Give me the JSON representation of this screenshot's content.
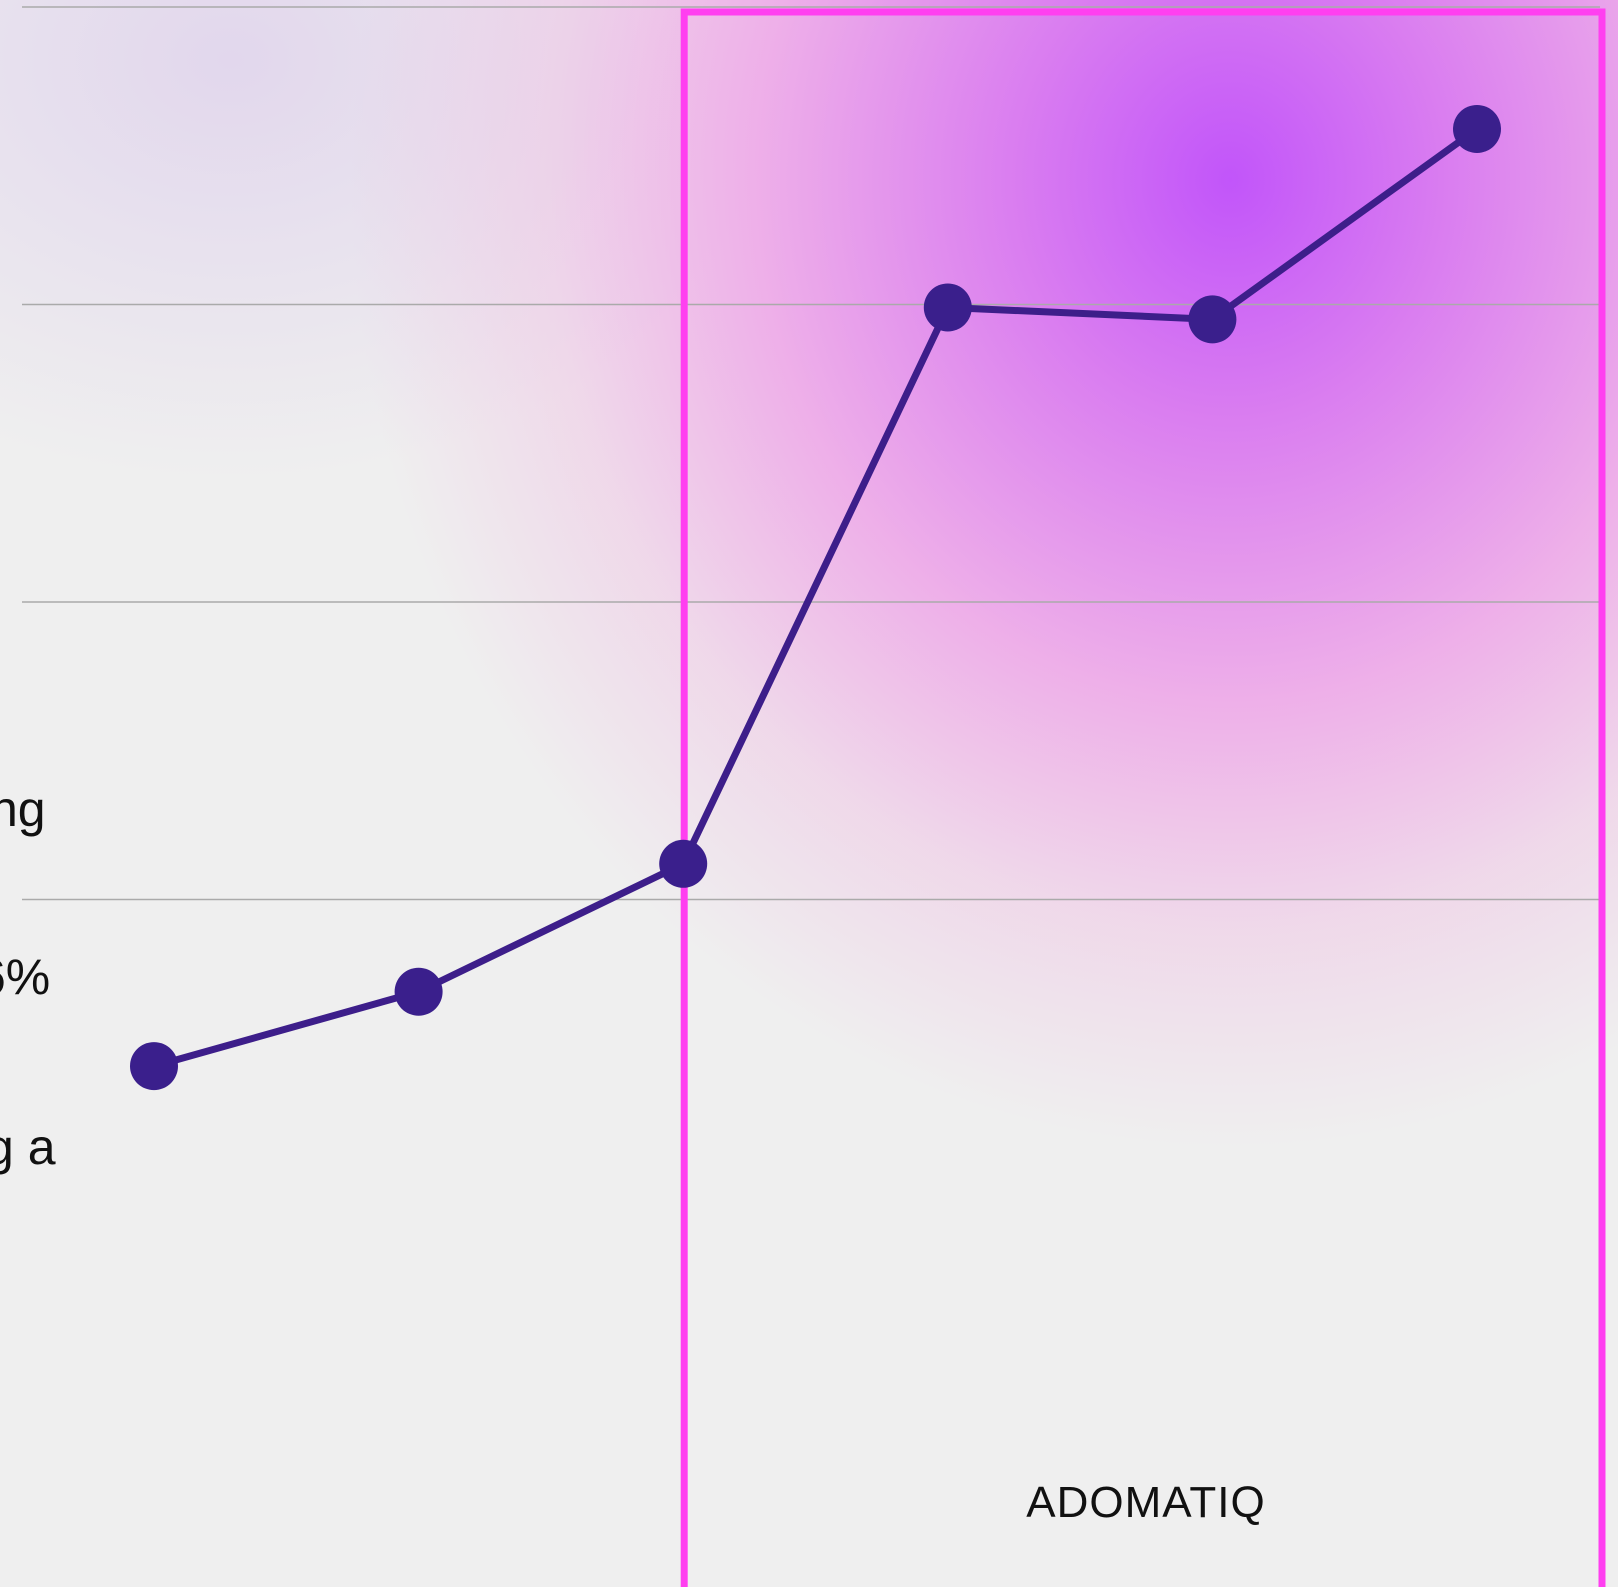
{
  "chart_data": {
    "type": "line",
    "title": "",
    "xlabel": "",
    "ylabel": "",
    "ylim": [
      0,
      4
    ],
    "grid": true,
    "series": [
      {
        "values": [
          0.44,
          0.69,
          1.12,
          2.99,
          2.95,
          3.59
        ]
      }
    ],
    "highlight": {
      "from_point": 2,
      "to_point": 5,
      "label": "ADOMATIQ"
    }
  },
  "left_labels": [
    "ng",
    "6%",
    "g a"
  ],
  "colors": {
    "line": "#3d1e8a",
    "marker": "#3a1f8c",
    "highlight_border": "#ff3ff0",
    "gridline": "#aaaaaa",
    "glow": "#c050fa",
    "background": "#efefef"
  }
}
